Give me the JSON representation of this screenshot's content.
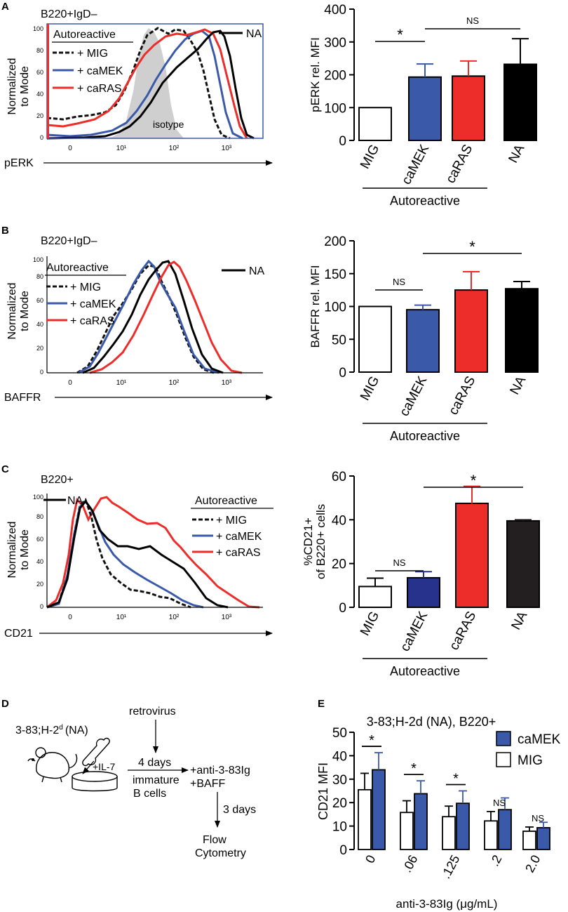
{
  "colors": {
    "mig": "#111111",
    "camek": "#3a59a8",
    "caras": "#ec2d2a",
    "na": "#000000",
    "camek_c": "#27328c",
    "na_c": "#231f20",
    "isotype": "#cfcfcf",
    "frame_a": "#3a59a8"
  },
  "panels": {
    "A": {
      "letter": "A",
      "histogram": {
        "title": "B220+IgD–",
        "xlabel": "pERK",
        "ylabel": [
          "Normalized",
          "to Mode"
        ],
        "yticks": [
          "0",
          "20",
          "40",
          "60",
          "80",
          "100"
        ],
        "xticks": [
          "0",
          "10¹",
          "10²",
          "10³"
        ],
        "legend_header": "Autoreactive",
        "legend": [
          "+ MIG",
          "+ caMEK",
          "+ caRAS"
        ],
        "na_label": "NA",
        "isotype_label": "isotype"
      }
    },
    "B": {
      "letter": "B",
      "histogram": {
        "title": "B220+IgD–",
        "xlabel": "BAFFR",
        "ylabel": [
          "Normalized",
          "to Mode"
        ],
        "yticks": [
          "0",
          "20",
          "40",
          "60",
          "80",
          "100"
        ],
        "xticks": [
          "0",
          "10¹",
          "10²",
          "10³"
        ],
        "legend_header": "Autoreactive",
        "legend": [
          "+ MIG",
          "+ caMEK",
          "+ caRAS"
        ],
        "na_label": "NA"
      }
    },
    "C": {
      "letter": "C",
      "histogram": {
        "title": "B220+",
        "xlabel": "CD21",
        "ylabel": [
          "Normalized",
          "to Mode"
        ],
        "yticks": [
          "0",
          "20",
          "40",
          "60",
          "80",
          "100"
        ],
        "xticks": [
          "0",
          "10¹",
          "10²",
          "10³"
        ],
        "legend_header": "Autoreactive",
        "legend": [
          "+ MIG",
          "+ caMEK",
          "+ caRAS"
        ],
        "na_label": "NA"
      }
    },
    "D": {
      "letter": "D",
      "mouse_label": "3-83;H-2",
      "mouse_label_sup": "d",
      "mouse_label_suffix": "(NA)",
      "il7": "+IL-7",
      "retrovirus": "retrovirus",
      "days4": "4 days",
      "immature": [
        "immature",
        "B cells"
      ],
      "stim": [
        "+anti-3-83Ig",
        "+BAFF"
      ],
      "days3": "3 days",
      "readout": [
        "Flow",
        "Cytometry"
      ]
    },
    "E": {
      "letter": "E"
    }
  },
  "chart_data": [
    {
      "panel": "A",
      "type": "bar",
      "ylabel": "pERK rel. MFI",
      "categories": [
        "MIG",
        "caMEK",
        "caRAS",
        "NA"
      ],
      "values": [
        100,
        193,
        196,
        232
      ],
      "errors": [
        0,
        40,
        46,
        78
      ],
      "ylim": [
        0,
        400
      ],
      "yticks": [
        0,
        100,
        200,
        300,
        400
      ],
      "group_label": "Autoreactive",
      "significance": [
        {
          "from": 0,
          "to": 1,
          "label": "*"
        },
        {
          "from": 1,
          "to": 3,
          "label": "NS"
        }
      ]
    },
    {
      "panel": "B",
      "type": "bar",
      "ylabel": "BAFFR rel. MFI",
      "categories": [
        "MIG",
        "caMEK",
        "caRAS",
        "NA"
      ],
      "values": [
        100,
        95,
        125,
        127
      ],
      "errors": [
        0,
        7,
        28,
        11
      ],
      "ylim": [
        0,
        200
      ],
      "yticks": [
        0,
        50,
        100,
        150,
        200
      ],
      "group_label": "Autoreactive",
      "significance": [
        {
          "from": 0,
          "to": 1,
          "label": "NS"
        },
        {
          "from": 1,
          "to": 3,
          "label": "*"
        }
      ]
    },
    {
      "panel": "C",
      "type": "bar",
      "ylabel": [
        "%CD21+",
        "of B220+ cells"
      ],
      "categories": [
        "MIG",
        "caMEK",
        "caRAS",
        "NA"
      ],
      "values": [
        9.5,
        13.5,
        47.5,
        39.5
      ],
      "errors": [
        3.8,
        2.8,
        7.8,
        0.5
      ],
      "ylim": [
        0,
        60
      ],
      "yticks": [
        0,
        20,
        40,
        60
      ],
      "group_label": "Autoreactive",
      "significance": [
        {
          "from": 0,
          "to": 1,
          "label": "NS"
        },
        {
          "from": 1,
          "to": 3,
          "label": "*"
        }
      ]
    },
    {
      "panel": "E",
      "type": "bar",
      "title": "3-83;H-2d (NA), B220+",
      "ylabel": "CD21 MFI",
      "xlabel": "anti-3-83Ig (μg/mL)",
      "categories": [
        "0",
        ".06",
        ".125",
        ".2",
        "2.0"
      ],
      "series": [
        {
          "name": "MIG",
          "values": [
            25.5,
            15.8,
            14,
            12.2,
            7.8
          ],
          "errors": [
            7,
            5,
            4.5,
            4,
            1.8
          ]
        },
        {
          "name": "caMEK",
          "values": [
            34,
            23.8,
            19.7,
            17,
            9.3
          ],
          "errors": [
            7.3,
            5.5,
            5.3,
            5,
            2.3
          ]
        }
      ],
      "ylim": [
        0,
        50
      ],
      "yticks": [
        0,
        10,
        20,
        30,
        40,
        50
      ],
      "legend": [
        "caMEK",
        "MIG"
      ],
      "significance": [
        "*",
        "*",
        "*",
        "NS",
        "NS"
      ]
    }
  ]
}
